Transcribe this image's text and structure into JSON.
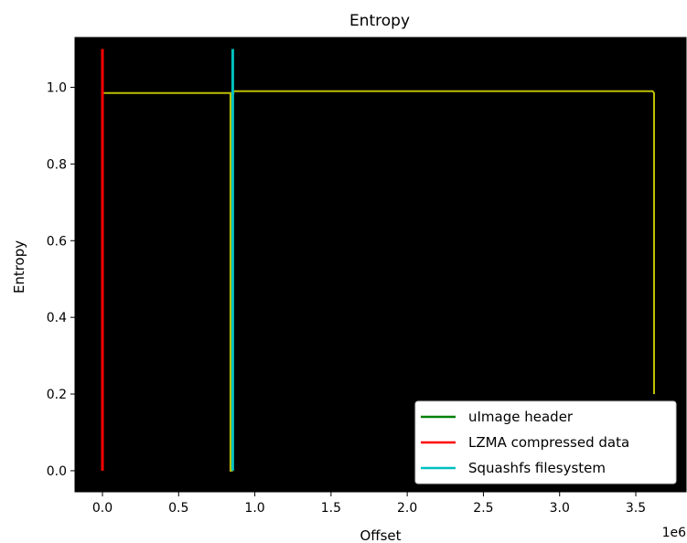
{
  "chart_data": {
    "type": "line",
    "title": "Entropy",
    "xlabel": "Offset",
    "ylabel": "Entropy",
    "x_offset_text": "1e6",
    "xlim": [
      -0.18,
      3.83
    ],
    "ylim": [
      -0.055,
      1.13
    ],
    "xticks": [
      0.0,
      0.5,
      1.0,
      1.5,
      2.0,
      2.5,
      3.0,
      3.5
    ],
    "xtick_labels": [
      "0.0",
      "0.5",
      "1.0",
      "1.5",
      "2.0",
      "2.5",
      "3.0",
      "3.5"
    ],
    "yticks": [
      0.0,
      0.2,
      0.4,
      0.6,
      0.8,
      1.0
    ],
    "ytick_labels": [
      "0.0",
      "0.2",
      "0.4",
      "0.6",
      "0.8",
      "1.0"
    ],
    "background": "#000000",
    "grid": false,
    "legend_position": "lower-right",
    "entropy_series": {
      "color": "#bfbf00",
      "x": [
        0.0,
        0.0,
        0.02,
        0.84,
        0.84,
        0.85,
        0.85,
        0.86,
        0.86,
        3.61,
        3.62,
        3.62
      ],
      "y": [
        0.975,
        0.985,
        0.985,
        0.985,
        0.0,
        0.0,
        0.985,
        0.985,
        0.99,
        0.99,
        0.985,
        0.2
      ]
    },
    "series": [
      {
        "name": "uImage header",
        "color": "#008000",
        "x": 0.0,
        "y": [
          0.0,
          1.1
        ]
      },
      {
        "name": "LZMA compressed data",
        "color": "#ff0000",
        "x": 0.0,
        "y": [
          0.0,
          1.1
        ]
      },
      {
        "name": "Squashfs filesystem",
        "color": "#00bfbf",
        "x": 0.855,
        "y": [
          0.0,
          1.1
        ]
      }
    ]
  }
}
